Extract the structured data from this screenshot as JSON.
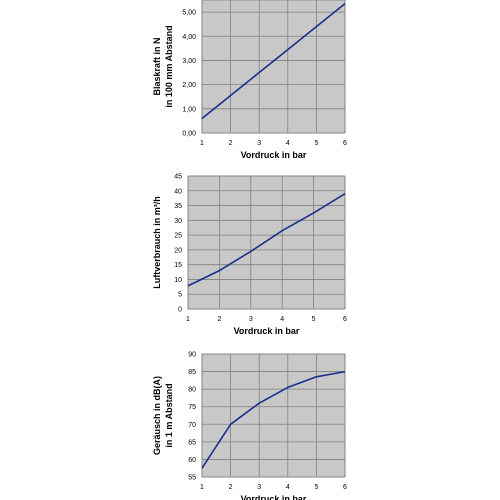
{
  "chart_data": [
    {
      "type": "line",
      "title": "",
      "xlabel": "Vordruck in bar",
      "ylabel_lines": [
        "Blaskraft in N",
        "in 100 mm Abstand"
      ],
      "xlim": [
        1,
        6
      ],
      "ylim": [
        0,
        5.5
      ],
      "x_ticks": [
        "1",
        "2",
        "3",
        "4",
        "5",
        "6"
      ],
      "y_tick_values": [
        0,
        1,
        2,
        3,
        4,
        5
      ],
      "y_ticks": [
        "0,00",
        "1,00",
        "2,00",
        "3,00",
        "4,00",
        "5,00"
      ],
      "grid": true,
      "plot_bg": "#c8c8c8",
      "grid_color": "#808080",
      "line_color": "#1a2f8a",
      "series": [
        {
          "x": [
            1,
            2,
            3,
            4,
            5,
            6
          ],
          "values": [
            0.6,
            1.55,
            2.5,
            3.45,
            4.4,
            5.35
          ]
        }
      ]
    },
    {
      "type": "line",
      "title": "",
      "xlabel": "Vordruck in bar",
      "ylabel_lines": [
        "Luftverbrauch in m³/h"
      ],
      "xlim": [
        1,
        6
      ],
      "ylim": [
        0,
        45
      ],
      "x_ticks": [
        "1",
        "2",
        "3",
        "4",
        "5",
        "6"
      ],
      "y_tick_values": [
        0,
        5,
        10,
        15,
        20,
        25,
        30,
        35,
        40,
        45
      ],
      "y_ticks": [
        "0",
        "5",
        "10",
        "15",
        "20",
        "25",
        "30",
        "35",
        "40",
        "45"
      ],
      "grid": true,
      "plot_bg": "#c8c8c8",
      "grid_color": "#808080",
      "line_color": "#1a2f8a",
      "series": [
        {
          "x": [
            1,
            2,
            3,
            4,
            5,
            6
          ],
          "values": [
            7.8,
            13,
            19.5,
            26.5,
            32.5,
            39
          ]
        }
      ]
    },
    {
      "type": "line",
      "title": "",
      "xlabel": "Vordruck in bar",
      "ylabel_lines": [
        "Geräusch in dB(A)",
        "in 1 m Abstand"
      ],
      "xlim": [
        1,
        6
      ],
      "ylim": [
        55,
        90
      ],
      "x_ticks": [
        "1",
        "2",
        "3",
        "4",
        "5",
        "6"
      ],
      "y_tick_values": [
        55,
        60,
        65,
        70,
        75,
        80,
        85,
        90
      ],
      "y_ticks": [
        "55",
        "60",
        "65",
        "70",
        "75",
        "80",
        "85",
        "90"
      ],
      "grid": true,
      "plot_bg": "#c8c8c8",
      "grid_color": "#808080",
      "line_color": "#1a2f8a",
      "series": [
        {
          "x": [
            1,
            2,
            3,
            4,
            5,
            6
          ],
          "values": [
            57.5,
            70,
            76,
            80.5,
            83.5,
            85
          ]
        }
      ]
    }
  ]
}
